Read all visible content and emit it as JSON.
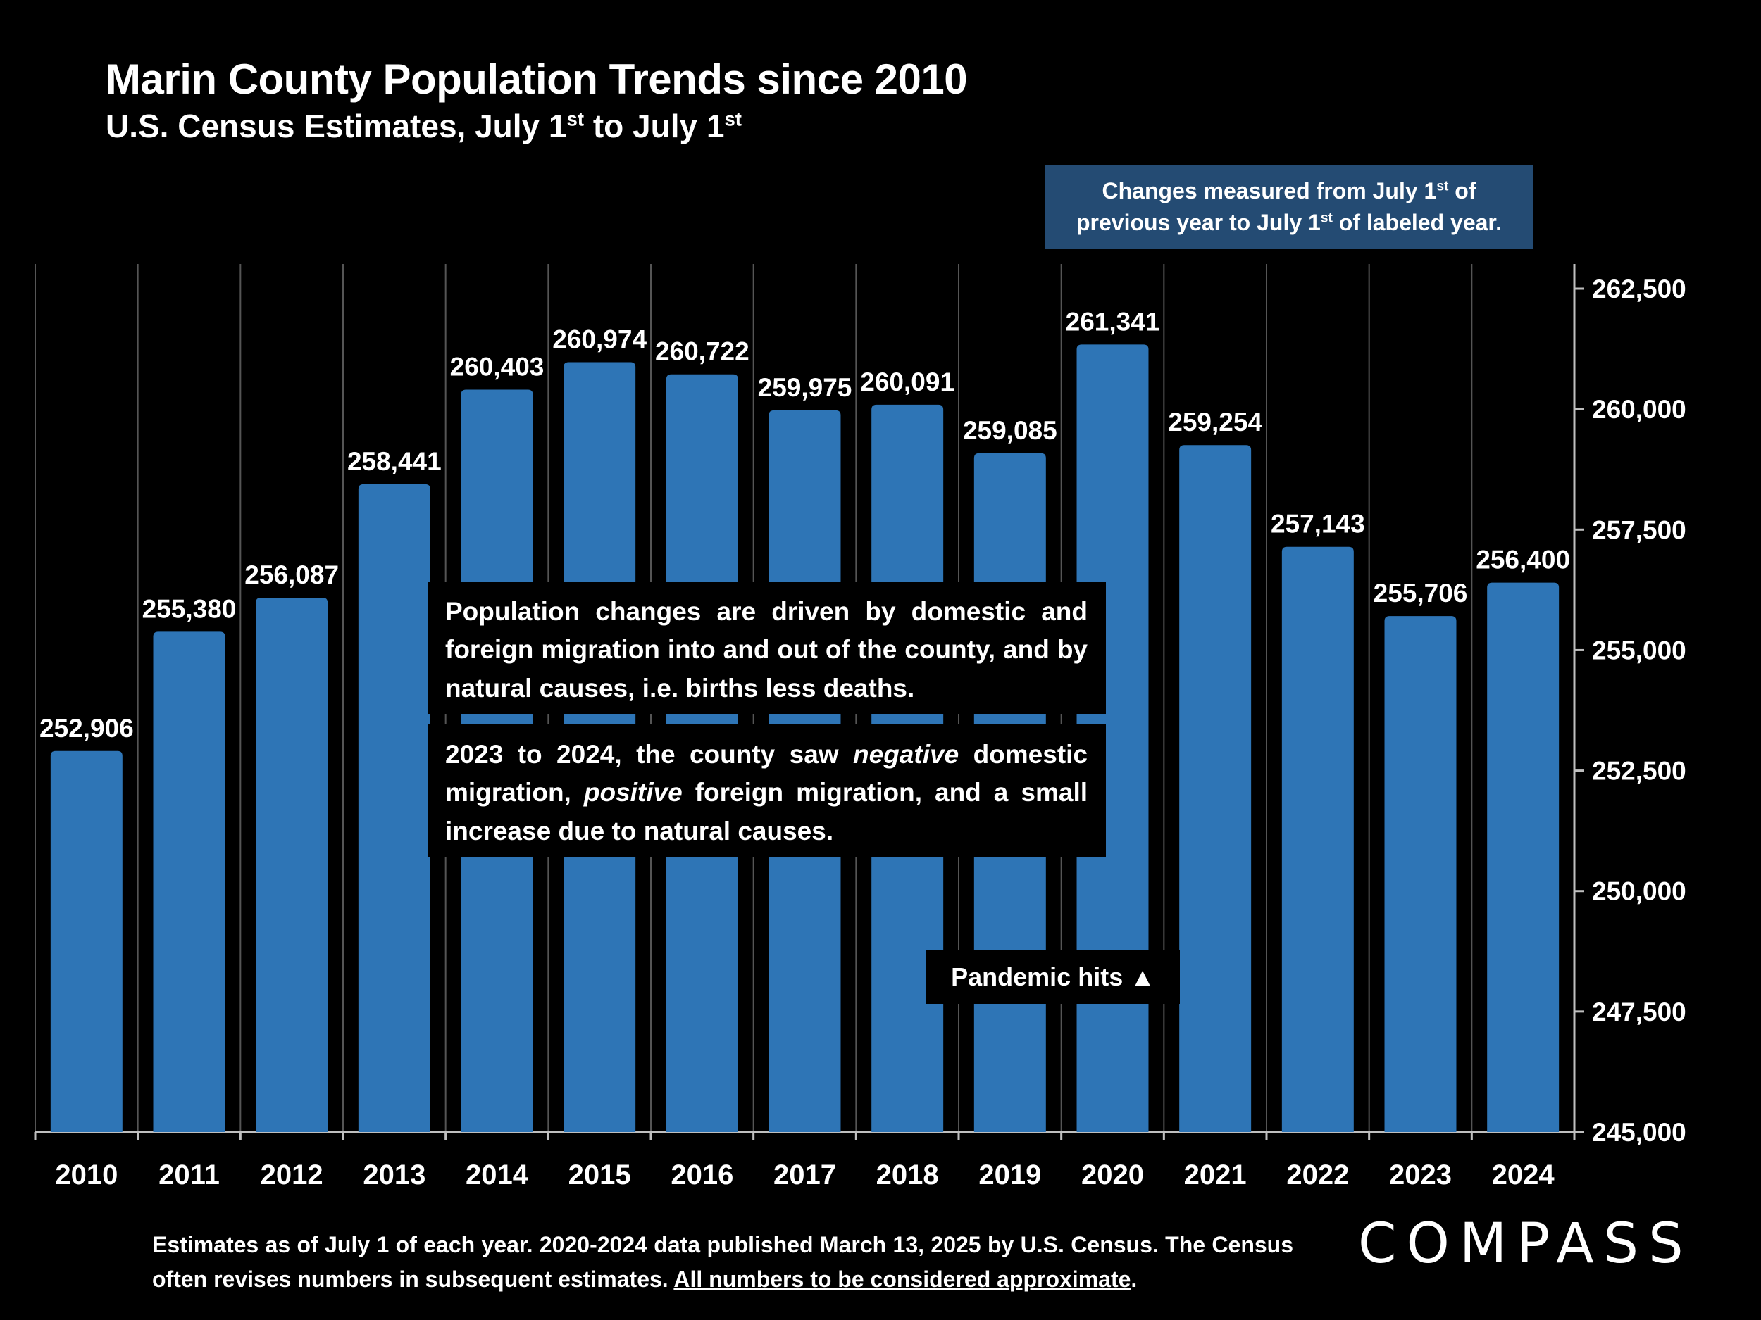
{
  "header": {
    "title": "Marin County Population Trends since 2010",
    "subtitle_main": "U.S. Census Estimates, July 1",
    "subtitle_sup1": "st",
    "subtitle_mid": " to July 1",
    "subtitle_sup2": "st"
  },
  "note": {
    "line1_a": "Changes measured from July 1",
    "line1_sup": "st",
    "line1_b": " of",
    "line2_a": "previous year to July 1",
    "line2_sup": "st",
    "line2_b": " of labeled year."
  },
  "info": {
    "box1": "Population changes are driven by domestic and foreign migration into and out of the county, and by natural causes, i.e. births less deaths.",
    "box2_a": "2023 to 2024, the county saw ",
    "box2_b": "negative",
    "box2_c": " domestic migration, ",
    "box2_d": "positive",
    "box2_e": " foreign migration, and a small increase due to natural causes."
  },
  "annotation": {
    "pandemic": "Pandemic hits ▲"
  },
  "footnote": {
    "text": "Estimates as of July 1 of each year. 2020-2024 data published March 13, 2025 by U.S. Census. The Census often revises numbers in subsequent estimates. ",
    "underlined": "All numbers to be considered approximate",
    "end": "."
  },
  "brand": {
    "logo": "COMPASS"
  },
  "colors": {
    "bar": "#2e75b6",
    "background": "#000000",
    "note_box": "#244b73",
    "grid": "#555555"
  },
  "chart_data": {
    "type": "bar",
    "title": "Marin County Population Trends since 2010",
    "categories": [
      "2010",
      "2011",
      "2012",
      "2013",
      "2014",
      "2015",
      "2016",
      "2017",
      "2018",
      "2019",
      "2020",
      "2021",
      "2022",
      "2023",
      "2024"
    ],
    "values": [
      252906,
      255380,
      256087,
      258441,
      260403,
      260974,
      260722,
      259975,
      260091,
      259085,
      261341,
      259254,
      257143,
      255706,
      256400
    ],
    "value_labels": [
      "252,906",
      "255,380",
      "256,087",
      "258,441",
      "260,403",
      "260,974",
      "260,722",
      "259,975",
      "260,091",
      "259,085",
      "261,341",
      "259,254",
      "257,143",
      "255,706",
      "256,400"
    ],
    "ylim": [
      245000,
      262500
    ],
    "yticks": [
      245000,
      247500,
      250000,
      252500,
      255000,
      257500,
      260000,
      262500
    ],
    "ytick_labels": [
      "245,000",
      "247,500",
      "250,000",
      "252,500",
      "255,000",
      "257,500",
      "260,000",
      "262,500"
    ],
    "y_axis_side": "right",
    "xlabel": "",
    "ylabel": "",
    "grid": "vertical"
  }
}
